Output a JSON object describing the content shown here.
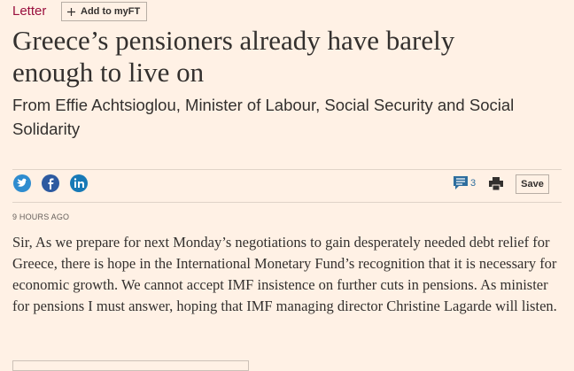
{
  "header": {
    "section": "Letter",
    "add_button": "Add to myFT"
  },
  "article": {
    "title": "Greece’s pensioners already have barely enough to live on",
    "subtitle": "From Effie Achtsioglou, Minister of Labour, Social Security and Social Solidarity",
    "timestamp": "9 HOURS AGO",
    "body": "Sir, As we prepare for next Monday’s negotiations to gain desperately needed debt relief for Greece, there is hope in the International Monetary Fund’s recognition that it is necessary for economic growth. We cannot accept IMF insistence on further cuts in pensions. As minister for pensions I must answer, hoping that IMF managing director Christine Lagarde will listen."
  },
  "toolbar": {
    "comment_count": 3,
    "save": "Save"
  }
}
